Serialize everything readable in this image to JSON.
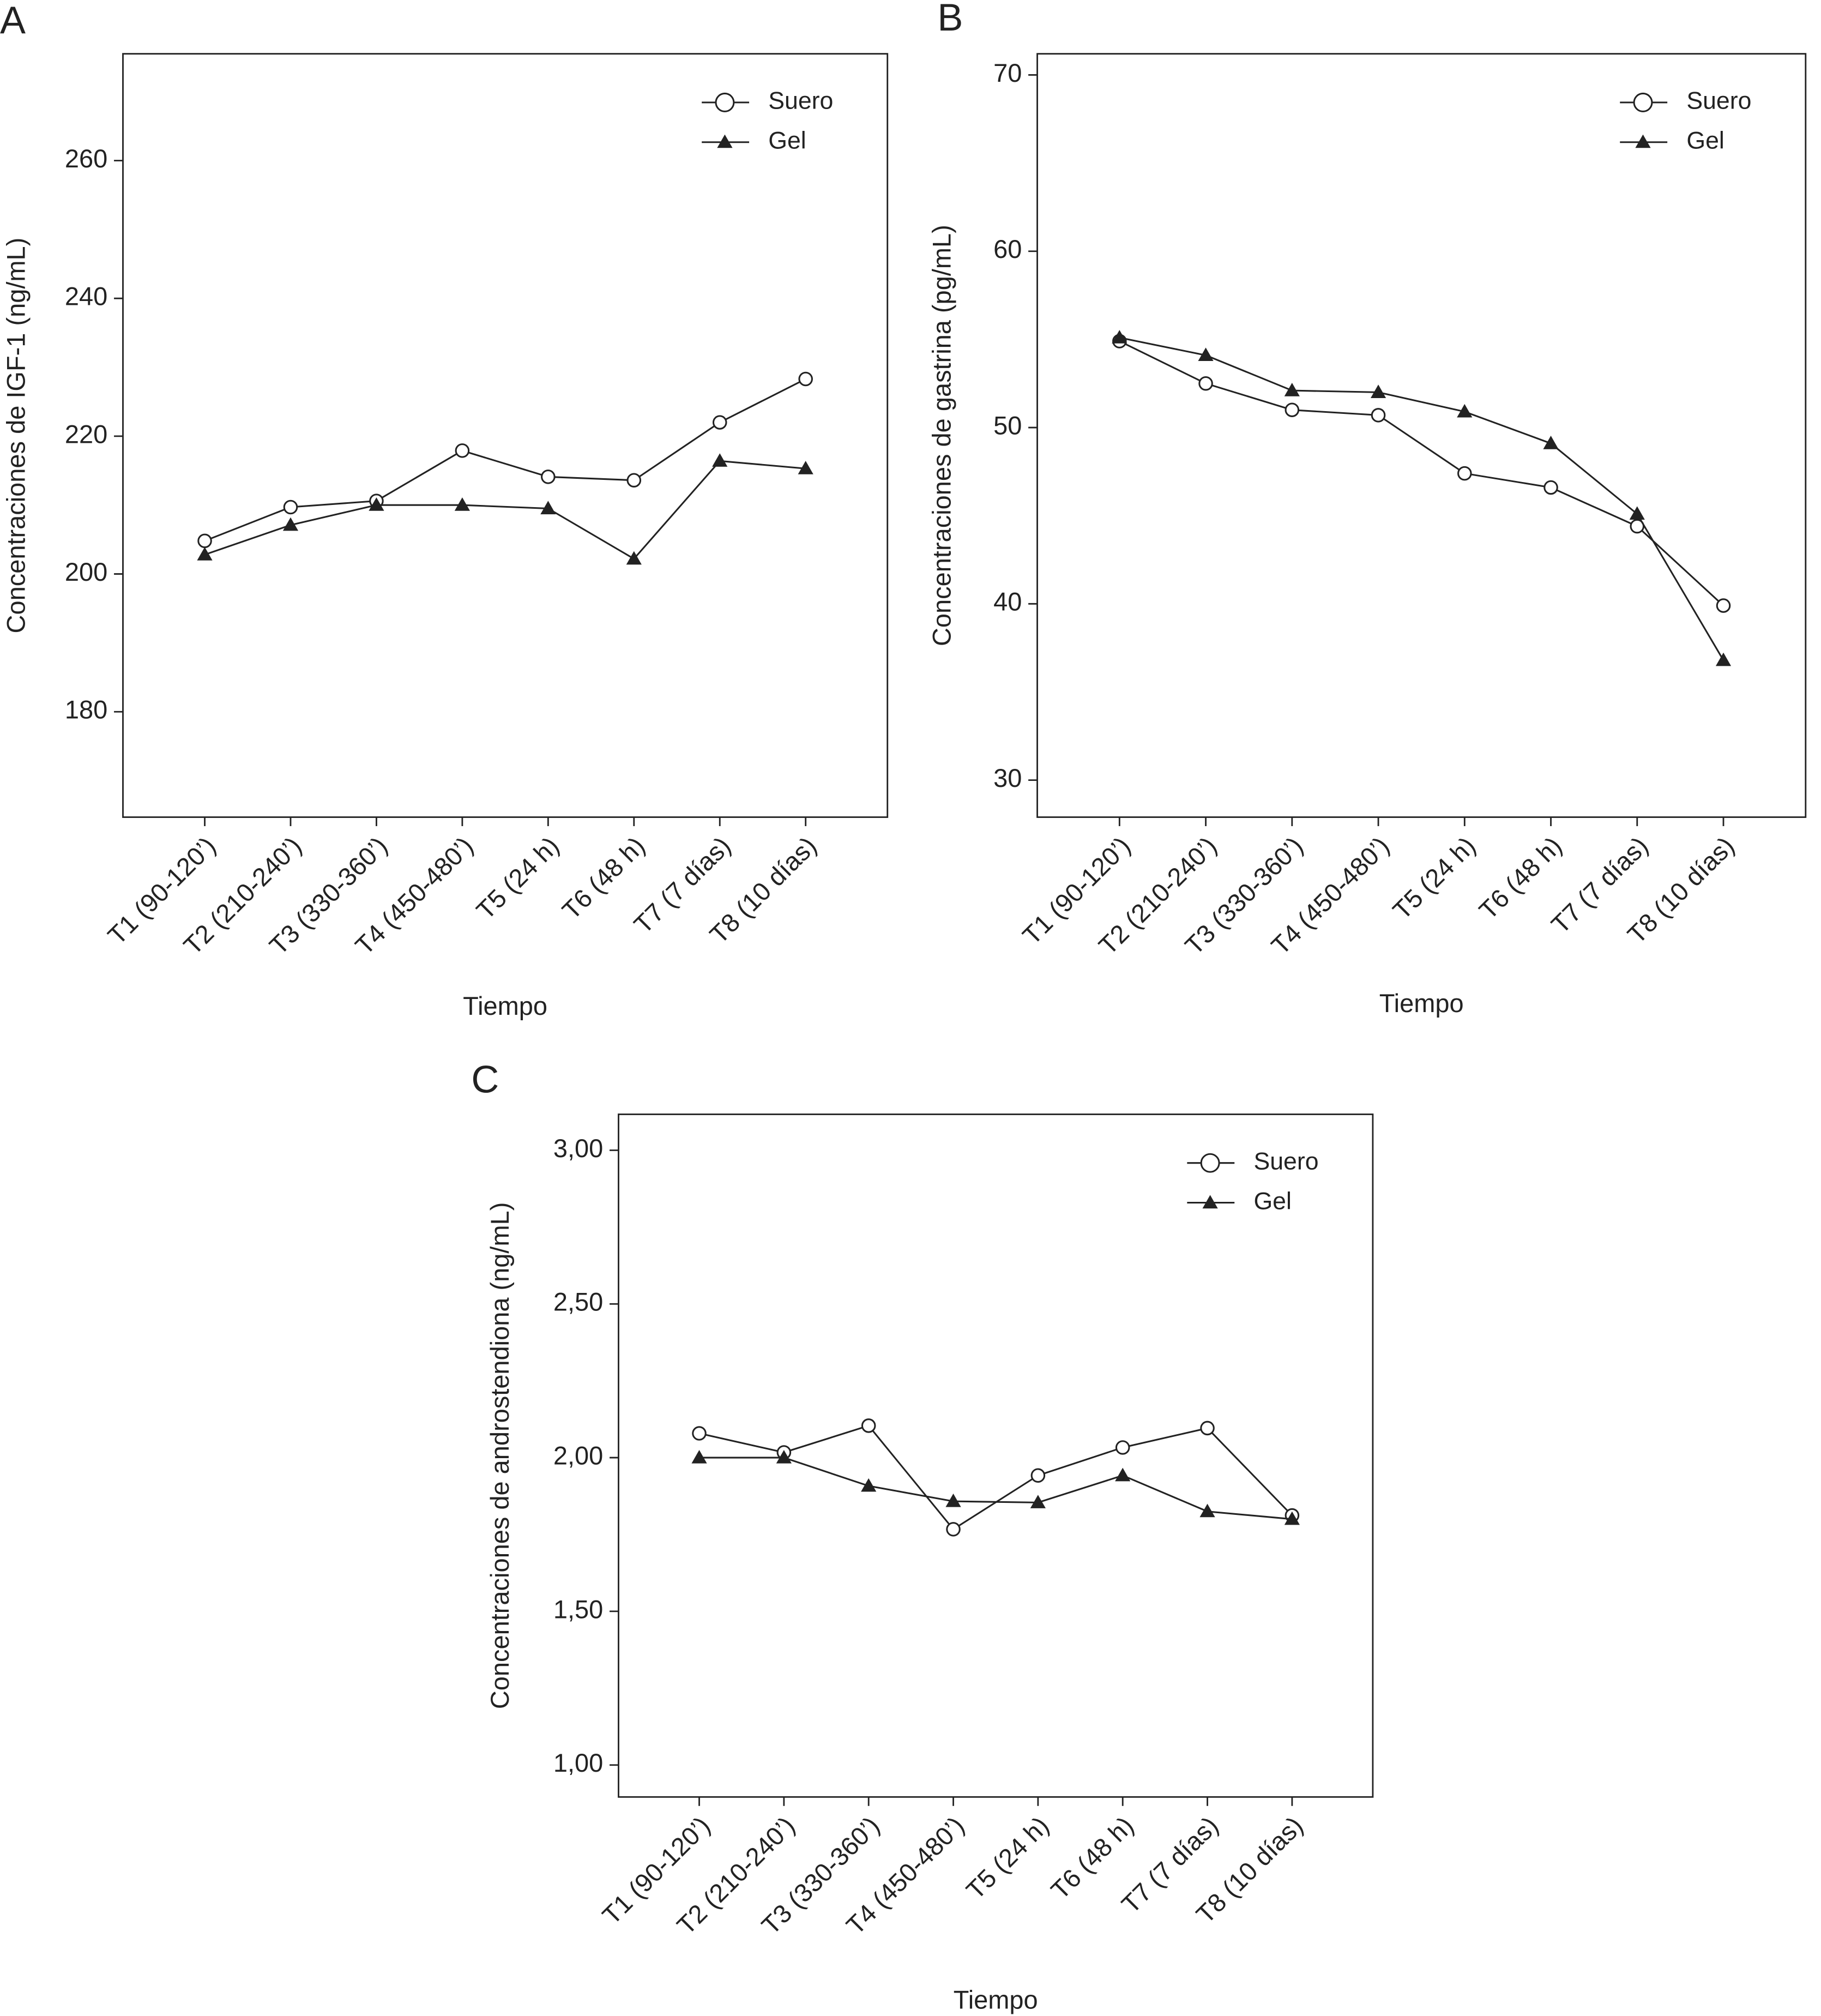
{
  "chart_data": [
    {
      "type": "line",
      "panel": "A",
      "ylabel": "Concentraciones de IGF-1 (ng/mL)",
      "xlabel": "Tiempo",
      "categories": [
        "T1 (90-120’)",
        "T2 (210-240’)",
        "T3 (330-360’)",
        "T4 (450-480’)",
        "T5 (24 h)",
        "T6 (48 h)",
        "T7 (7 días)",
        "T8 (10 días)"
      ],
      "series": [
        {
          "name": "Suero",
          "color": "#222222",
          "marker": "circle",
          "values": [
            204.8,
            209.7,
            210.6,
            217.9,
            214.1,
            213.6,
            222.0,
            228.3
          ]
        },
        {
          "name": "Gel",
          "color": "#222222",
          "marker": "triangle",
          "values": [
            202.8,
            207.1,
            210.0,
            210.0,
            209.5,
            202.2,
            216.4,
            215.3
          ]
        }
      ],
      "ylim": [
        164.7,
        275.5
      ],
      "yticks": [
        180,
        200,
        220,
        240,
        260
      ]
    },
    {
      "type": "line",
      "panel": "B",
      "ylabel": "Concentraciones de gastrina (pg/mL)",
      "xlabel": "Tiempo",
      "categories": [
        "T1 (90-120’)",
        "T2 (210-240’)",
        "T3 (330-360’)",
        "T4 (450-480’)",
        "T5 (24 h)",
        "T6 (48 h)",
        "T7 (7 días)",
        "T8 (10 días)"
      ],
      "series": [
        {
          "name": "Suero",
          "color": "#222222",
          "marker": "circle",
          "values": [
            54.9,
            52.5,
            51.0,
            50.7,
            47.4,
            46.6,
            44.4,
            39.9
          ]
        },
        {
          "name": "Gel",
          "color": "#222222",
          "marker": "triangle",
          "values": [
            55.1,
            54.1,
            52.1,
            52.0,
            50.9,
            49.1,
            45.1,
            36.8
          ]
        }
      ],
      "ylim": [
        27.9,
        71.2
      ],
      "yticks": [
        30,
        40,
        50,
        60,
        70
      ]
    },
    {
      "type": "line",
      "panel": "C",
      "ylabel": "Concentraciones de androstendiona (ng/mL)",
      "xlabel": "Tiempo",
      "categories": [
        "T1 (90-120’)",
        "T2 (210-240’)",
        "T3 (330-360’)",
        "T4 (450-480’)",
        "T5 (24 h)",
        "T6 (48 h)",
        "T7 (7 días)",
        "T8 (10 días)"
      ],
      "series": [
        {
          "name": "Suero",
          "color": "#222222",
          "marker": "circle",
          "values": [
            2.079,
            2.017,
            2.104,
            1.767,
            1.942,
            2.033,
            2.096,
            1.812
          ]
        },
        {
          "name": "Gel",
          "color": "#222222",
          "marker": "triangle",
          "values": [
            2.0,
            2.0,
            1.908,
            1.858,
            1.854,
            1.942,
            1.825,
            1.8
          ]
        }
      ],
      "ylim": [
        0.896,
        3.117
      ],
      "yticks": [
        {
          "value": 1,
          "label": "1,00"
        },
        {
          "value": 1.5,
          "label": "1,50"
        },
        {
          "value": 2,
          "label": "2,00"
        },
        {
          "value": 2.5,
          "label": "2,50"
        },
        {
          "value": 3,
          "label": "3,00"
        }
      ]
    }
  ]
}
